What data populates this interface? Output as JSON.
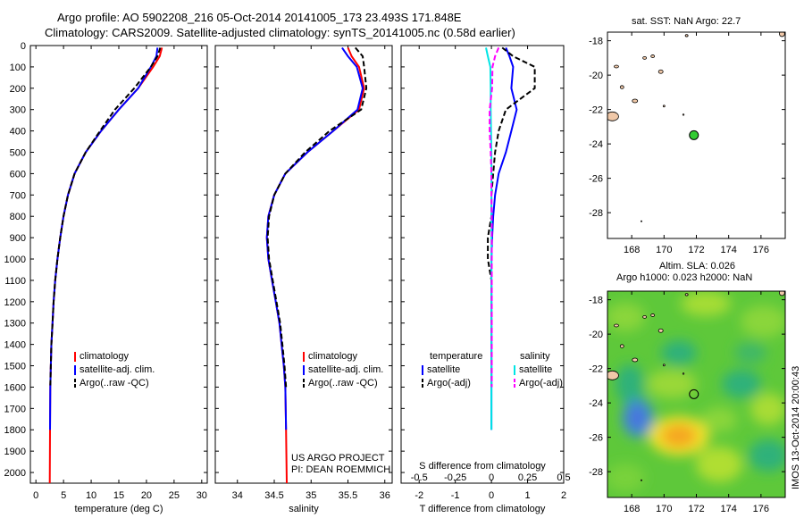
{
  "header": {
    "line1": "Argo profile: AO 5902208_216 05-Oct-2014 20141005_173 23.493S 171.848E",
    "line2": "Climatology: CARS2009. Satellite-adjusted climatology: synTS_20141005.nc (0.58d earlier)"
  },
  "side_label": "IMOS 13-Oct-2014 20:00:43",
  "colors": {
    "climatology": "#ff0000",
    "satellite": "#0000ff",
    "argo": "#000000",
    "salinity_satellite": "#00e5e5",
    "salinity_argo": "#ff00ff",
    "land": "#f0c8a8",
    "float_marker": "#33cc33"
  },
  "chart_data": [
    {
      "id": "temperature",
      "type": "line",
      "xlabel": "temperature (deg C)",
      "xlim": [
        -1,
        31
      ],
      "xticks": [
        0,
        5,
        10,
        15,
        20,
        25,
        30
      ],
      "ylim": [
        2050,
        0
      ],
      "yticks": [
        0,
        100,
        200,
        300,
        400,
        500,
        600,
        700,
        800,
        900,
        1000,
        1100,
        1200,
        1300,
        1400,
        1500,
        1600,
        1700,
        1800,
        1900,
        2000
      ],
      "legend": [
        "climatology",
        "satellite-adj. clim.",
        "Argo(..raw -QC)"
      ],
      "series": [
        {
          "key": "climatology",
          "style": "solid",
          "color": "#ff0000",
          "x": [
            22.8,
            22.4,
            21.2,
            18.5,
            15.0,
            11.8,
            9.0,
            7.0,
            5.8,
            5.0,
            4.4,
            3.9,
            3.5,
            3.2,
            3.0,
            2.8,
            2.7,
            2.6,
            2.55,
            2.5
          ],
          "y": [
            10,
            50,
            100,
            200,
            300,
            400,
            500,
            600,
            700,
            800,
            900,
            1000,
            1100,
            1200,
            1300,
            1400,
            1500,
            1600,
            1800,
            2050
          ]
        },
        {
          "key": "satellite",
          "style": "solid",
          "color": "#0000ff",
          "x": [
            22.0,
            21.8,
            20.8,
            18.5,
            15.0,
            11.8,
            9.0,
            7.0,
            5.8,
            5.0,
            4.4,
            3.9,
            3.5,
            3.2,
            3.0,
            2.8,
            2.7,
            2.6,
            2.55
          ],
          "y": [
            10,
            50,
            100,
            200,
            300,
            400,
            500,
            600,
            700,
            800,
            900,
            1000,
            1100,
            1200,
            1300,
            1400,
            1500,
            1600,
            1800
          ]
        },
        {
          "key": "argo",
          "style": "dashed",
          "color": "#000000",
          "x": [
            22.5,
            22.0,
            20.8,
            17.8,
            14.3,
            11.6,
            9.0,
            7.0,
            5.8,
            5.0,
            4.4,
            3.9,
            3.5,
            3.2,
            3.0,
            2.8,
            2.7,
            2.6
          ],
          "y": [
            10,
            50,
            100,
            200,
            300,
            400,
            500,
            600,
            700,
            800,
            900,
            1000,
            1100,
            1200,
            1300,
            1400,
            1500,
            1600
          ]
        }
      ]
    },
    {
      "id": "salinity",
      "type": "line",
      "xlabel": "salinity",
      "xlim": [
        33.7,
        36.1
      ],
      "xticks": [
        34,
        34.5,
        35,
        35.5,
        36
      ],
      "ylim": [
        2050,
        0
      ],
      "legend": [
        "climatology",
        "satellite-adj. clim.",
        "Argo(..raw -QC)"
      ],
      "annotation": [
        "US ARGO PROJECT",
        "PI: DEAN ROEMMICH"
      ],
      "series": [
        {
          "key": "climatology",
          "style": "solid",
          "color": "#ff0000",
          "x": [
            35.5,
            35.55,
            35.65,
            35.72,
            35.65,
            35.3,
            34.95,
            34.65,
            34.5,
            34.42,
            34.4,
            34.42,
            34.47,
            34.52,
            34.57,
            34.6,
            34.63,
            34.65,
            34.66,
            34.67
          ],
          "y": [
            10,
            50,
            100,
            200,
            300,
            400,
            500,
            600,
            700,
            800,
            900,
            1000,
            1100,
            1200,
            1300,
            1400,
            1500,
            1600,
            1800,
            2050
          ]
        },
        {
          "key": "satellite",
          "style": "solid",
          "color": "#0000ff",
          "x": [
            35.42,
            35.5,
            35.62,
            35.7,
            35.63,
            35.3,
            34.95,
            34.65,
            34.5,
            34.42,
            34.4,
            34.42,
            34.47,
            34.52,
            34.57,
            34.6,
            34.63,
            34.65,
            34.66
          ],
          "y": [
            10,
            50,
            100,
            200,
            300,
            400,
            500,
            600,
            700,
            800,
            900,
            1000,
            1100,
            1200,
            1300,
            1400,
            1500,
            1600,
            1800
          ]
        },
        {
          "key": "argo",
          "style": "dashed",
          "color": "#000000",
          "x": [
            35.6,
            35.7,
            35.72,
            35.75,
            35.68,
            35.25,
            34.92,
            34.65,
            34.5,
            34.43,
            34.41,
            34.43,
            34.48,
            34.53,
            34.58,
            34.61,
            34.64,
            34.66
          ],
          "y": [
            10,
            50,
            100,
            200,
            300,
            400,
            500,
            600,
            700,
            800,
            900,
            1000,
            1100,
            1200,
            1300,
            1400,
            1500,
            1600
          ]
        }
      ]
    },
    {
      "id": "difference",
      "type": "line",
      "xlabel": "T difference from climatology",
      "xlabel2": "S difference from climatology",
      "xlim": [
        -2.5,
        2.0
      ],
      "xticks": [
        -2,
        -1,
        0,
        1,
        2
      ],
      "xticks_top": [
        -0.5,
        -0.25,
        0,
        0.25,
        0.5
      ],
      "xticks_top_labels": [
        "-0.5",
        "-0.25",
        "0",
        "0.25",
        "0.5"
      ],
      "ylim": [
        2050,
        0
      ],
      "legend_groups": [
        {
          "title": "temperature",
          "entries": [
            "satellite",
            "Argo(-adj)"
          ]
        },
        {
          "title": "salinity",
          "entries": [
            "satellite",
            "Argo(-adj)"
          ]
        }
      ],
      "series": [
        {
          "key": "temp_satellite",
          "style": "solid",
          "color": "#0000ff",
          "x": [
            0.4,
            0.5,
            0.6,
            0.55,
            0.7,
            0.55,
            0.4,
            0.2,
            0.1,
            0.05,
            0.02,
            0.0,
            0.0,
            0.0,
            0.0,
            0.0,
            0.0,
            0.0,
            0.0
          ],
          "y": [
            10,
            50,
            100,
            200,
            300,
            400,
            500,
            600,
            700,
            800,
            900,
            1000,
            1100,
            1200,
            1300,
            1400,
            1500,
            1600,
            1800
          ]
        },
        {
          "key": "temp_argo",
          "style": "dashed",
          "color": "#000000",
          "x": [
            0.3,
            0.6,
            1.2,
            1.2,
            0.4,
            0.2,
            0.1,
            0.05,
            0.0,
            0.0,
            -0.1,
            -0.1,
            0.0,
            0.0,
            0.0,
            0.0,
            0.0,
            0.0
          ],
          "y": [
            10,
            50,
            100,
            200,
            300,
            400,
            500,
            600,
            700,
            800,
            900,
            1000,
            1100,
            1200,
            1300,
            1400,
            1500,
            1600
          ]
        },
        {
          "key": "sal_satellite",
          "style": "solid",
          "color": "#00e5e5",
          "x": [
            -0.15,
            -0.1,
            -0.03,
            -0.02,
            -0.02,
            -0.01,
            0.0,
            0.0,
            0.0,
            0.0,
            0.0,
            0.0,
            0.0,
            0.0,
            0.0,
            0.0,
            0.0,
            0.0,
            0.0
          ],
          "y": [
            10,
            50,
            100,
            200,
            300,
            400,
            500,
            600,
            700,
            800,
            900,
            1000,
            1100,
            1200,
            1300,
            1400,
            1500,
            1600,
            1800
          ]
        },
        {
          "key": "sal_argo",
          "style": "dashed",
          "color": "#ff00ff",
          "x": [
            0.2,
            0.1,
            0.03,
            0.02,
            -0.05,
            -0.05,
            -0.02,
            0.0,
            0.0,
            0.01,
            0.01,
            0.01,
            0.01,
            0.01,
            0.01,
            0.01,
            0.01,
            0.01
          ],
          "y": [
            10,
            50,
            100,
            200,
            300,
            400,
            500,
            600,
            700,
            800,
            900,
            1000,
            1100,
            1200,
            1300,
            1400,
            1500,
            1600
          ]
        }
      ]
    },
    {
      "id": "sst_map",
      "type": "scatter",
      "title": "sat. SST: NaN Argo: 22.7",
      "xlim": [
        166.5,
        177.5
      ],
      "ylim": [
        -29.5,
        -17.5
      ],
      "xticks": [
        168,
        170,
        172,
        174,
        176
      ],
      "yticks": [
        -18,
        -20,
        -22,
        -24,
        -26,
        -28
      ],
      "float_position": {
        "lon": 171.848,
        "lat": -23.493
      }
    },
    {
      "id": "sla_map",
      "type": "heatmap",
      "title_line1": "Altim. SLA: 0.026",
      "title_line2": "Argo h1000: 0.023 h2000: NaN",
      "xlim": [
        166.5,
        177.5
      ],
      "ylim": [
        -29.5,
        -17.5
      ],
      "xticks": [
        168,
        170,
        172,
        174,
        176
      ],
      "yticks": [
        -18,
        -20,
        -22,
        -24,
        -26,
        -28
      ],
      "float_position": {
        "lon": 171.848,
        "lat": -23.493
      }
    }
  ]
}
